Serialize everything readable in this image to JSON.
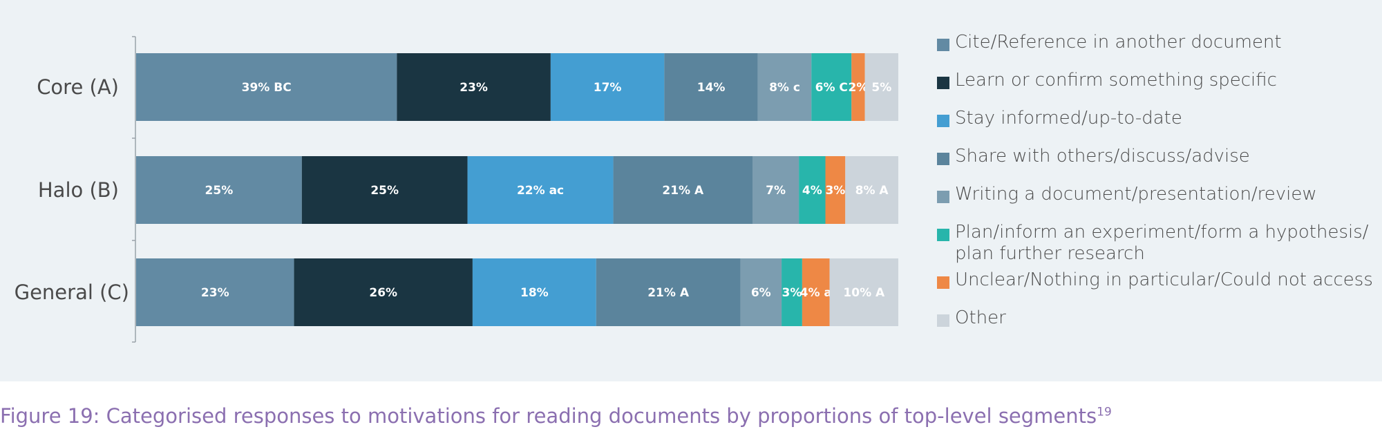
{
  "chart_data": {
    "type": "bar",
    "orientation": "horizontal",
    "stacked": true,
    "categories": [
      "Core (A)",
      "Halo (B)",
      "General (C)"
    ],
    "series": [
      {
        "name": "Cite/Reference in another document",
        "color": "#628aa3",
        "values": [
          39,
          25,
          23
        ],
        "labels": [
          "39% BC",
          "25%",
          "23%"
        ]
      },
      {
        "name": "Learn or confirm something specific",
        "color": "#1a3542",
        "values": [
          23,
          25,
          26
        ],
        "labels": [
          "23%",
          "25%",
          "26%"
        ]
      },
      {
        "name": "Stay informed/up-to-date",
        "color": "#449ed2",
        "values": [
          17,
          22,
          18
        ],
        "labels": [
          "17%",
          "22% ac",
          "18%"
        ]
      },
      {
        "name": "Share with others/discuss/advise",
        "color": "#5b849c",
        "values": [
          14,
          21,
          21
        ],
        "labels": [
          "14%",
          "21% A",
          "21% A"
        ]
      },
      {
        "name": "Writing a document/presentation/review",
        "color": "#7c9db0",
        "values": [
          8,
          7,
          6
        ],
        "labels": [
          "8% c",
          "7%",
          "6%"
        ]
      },
      {
        "name": "Plan/inform an experiment/form a hypothesis/ plan further research",
        "color": "#28b5ab",
        "values": [
          6,
          4,
          3
        ],
        "labels": [
          "6% C",
          "4%",
          "3%"
        ]
      },
      {
        "name": "Unclear/Nothing in particular/Could not access",
        "color": "#ee8845",
        "values": [
          2,
          3,
          4
        ],
        "labels": [
          "2%",
          "3%",
          "4% a"
        ]
      },
      {
        "name": "Other",
        "color": "#ccd4db",
        "values": [
          5,
          8,
          10
        ],
        "labels": [
          "5%",
          "8% A",
          "10% A"
        ]
      }
    ],
    "legend_position": "right",
    "grid": false
  },
  "legend": {
    "items": [
      {
        "label": "Cite/Reference in another document",
        "color": "#628aa3"
      },
      {
        "label": "Learn or confirm something specific",
        "color": "#1a3542"
      },
      {
        "label": "Stay informed/up-to-date",
        "color": "#449ed2"
      },
      {
        "label": "Share with others/discuss/advise",
        "color": "#5b849c"
      },
      {
        "label": "Writing a document/presentation/review",
        "color": "#7c9db0"
      },
      {
        "label": "Plan/inform an experiment/form a hypothesis/",
        "label2": "plan further research",
        "color": "#28b5ab"
      },
      {
        "label": "Unclear/Nothing in particular/Could not access",
        "color": "#ee8845"
      },
      {
        "label": "Other",
        "color": "#ccd4db"
      }
    ]
  },
  "caption": {
    "text": "Figure 19: Categorised responses to motivations for reading documents by proportions of top-level segments",
    "superscript": "19"
  }
}
